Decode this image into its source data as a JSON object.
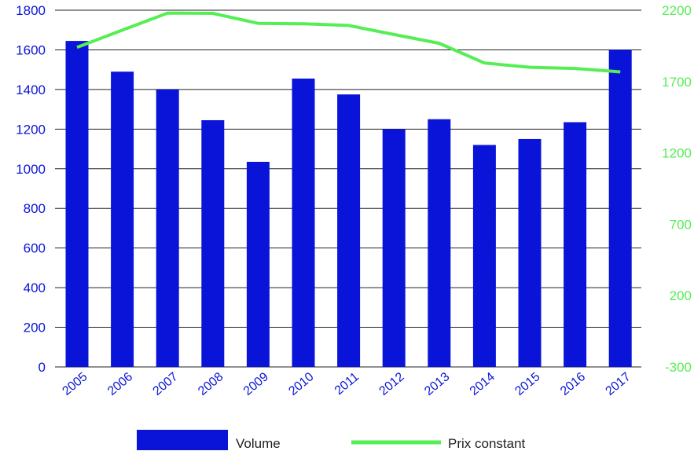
{
  "chart_data": {
    "type": "bar+line",
    "categories": [
      "2005",
      "2006",
      "2007",
      "2008",
      "2009",
      "2010",
      "2011",
      "2012",
      "2013",
      "2014",
      "2015",
      "2016",
      "2017"
    ],
    "series": [
      {
        "name": "Volume",
        "type": "bar",
        "axis": "left",
        "color": "#0a14d8",
        "values": [
          1645,
          1490,
          1400,
          1245,
          1035,
          1455,
          1375,
          1200,
          1250,
          1120,
          1150,
          1235,
          1600
        ]
      },
      {
        "name": "Prix constant",
        "type": "line",
        "axis": "right",
        "color": "#55ee55",
        "values": [
          1940,
          2060,
          2180,
          2178,
          2108,
          2105,
          2093,
          2030,
          1968,
          1830,
          1800,
          1792,
          1768
        ]
      }
    ],
    "left_axis": {
      "ylim": [
        0,
        1800
      ],
      "ticks": [
        "0",
        "200",
        "400",
        "600",
        "800",
        "1000",
        "1200",
        "1400",
        "1600",
        "1800"
      ],
      "color": "#0a14d8"
    },
    "right_axis": {
      "ylim": [
        -300,
        2200
      ],
      "ticks": [
        "-300",
        "200",
        "700",
        "1200",
        "1700",
        "2200"
      ],
      "color": "#55ee55"
    },
    "grid": true,
    "legend_position": "bottom"
  }
}
